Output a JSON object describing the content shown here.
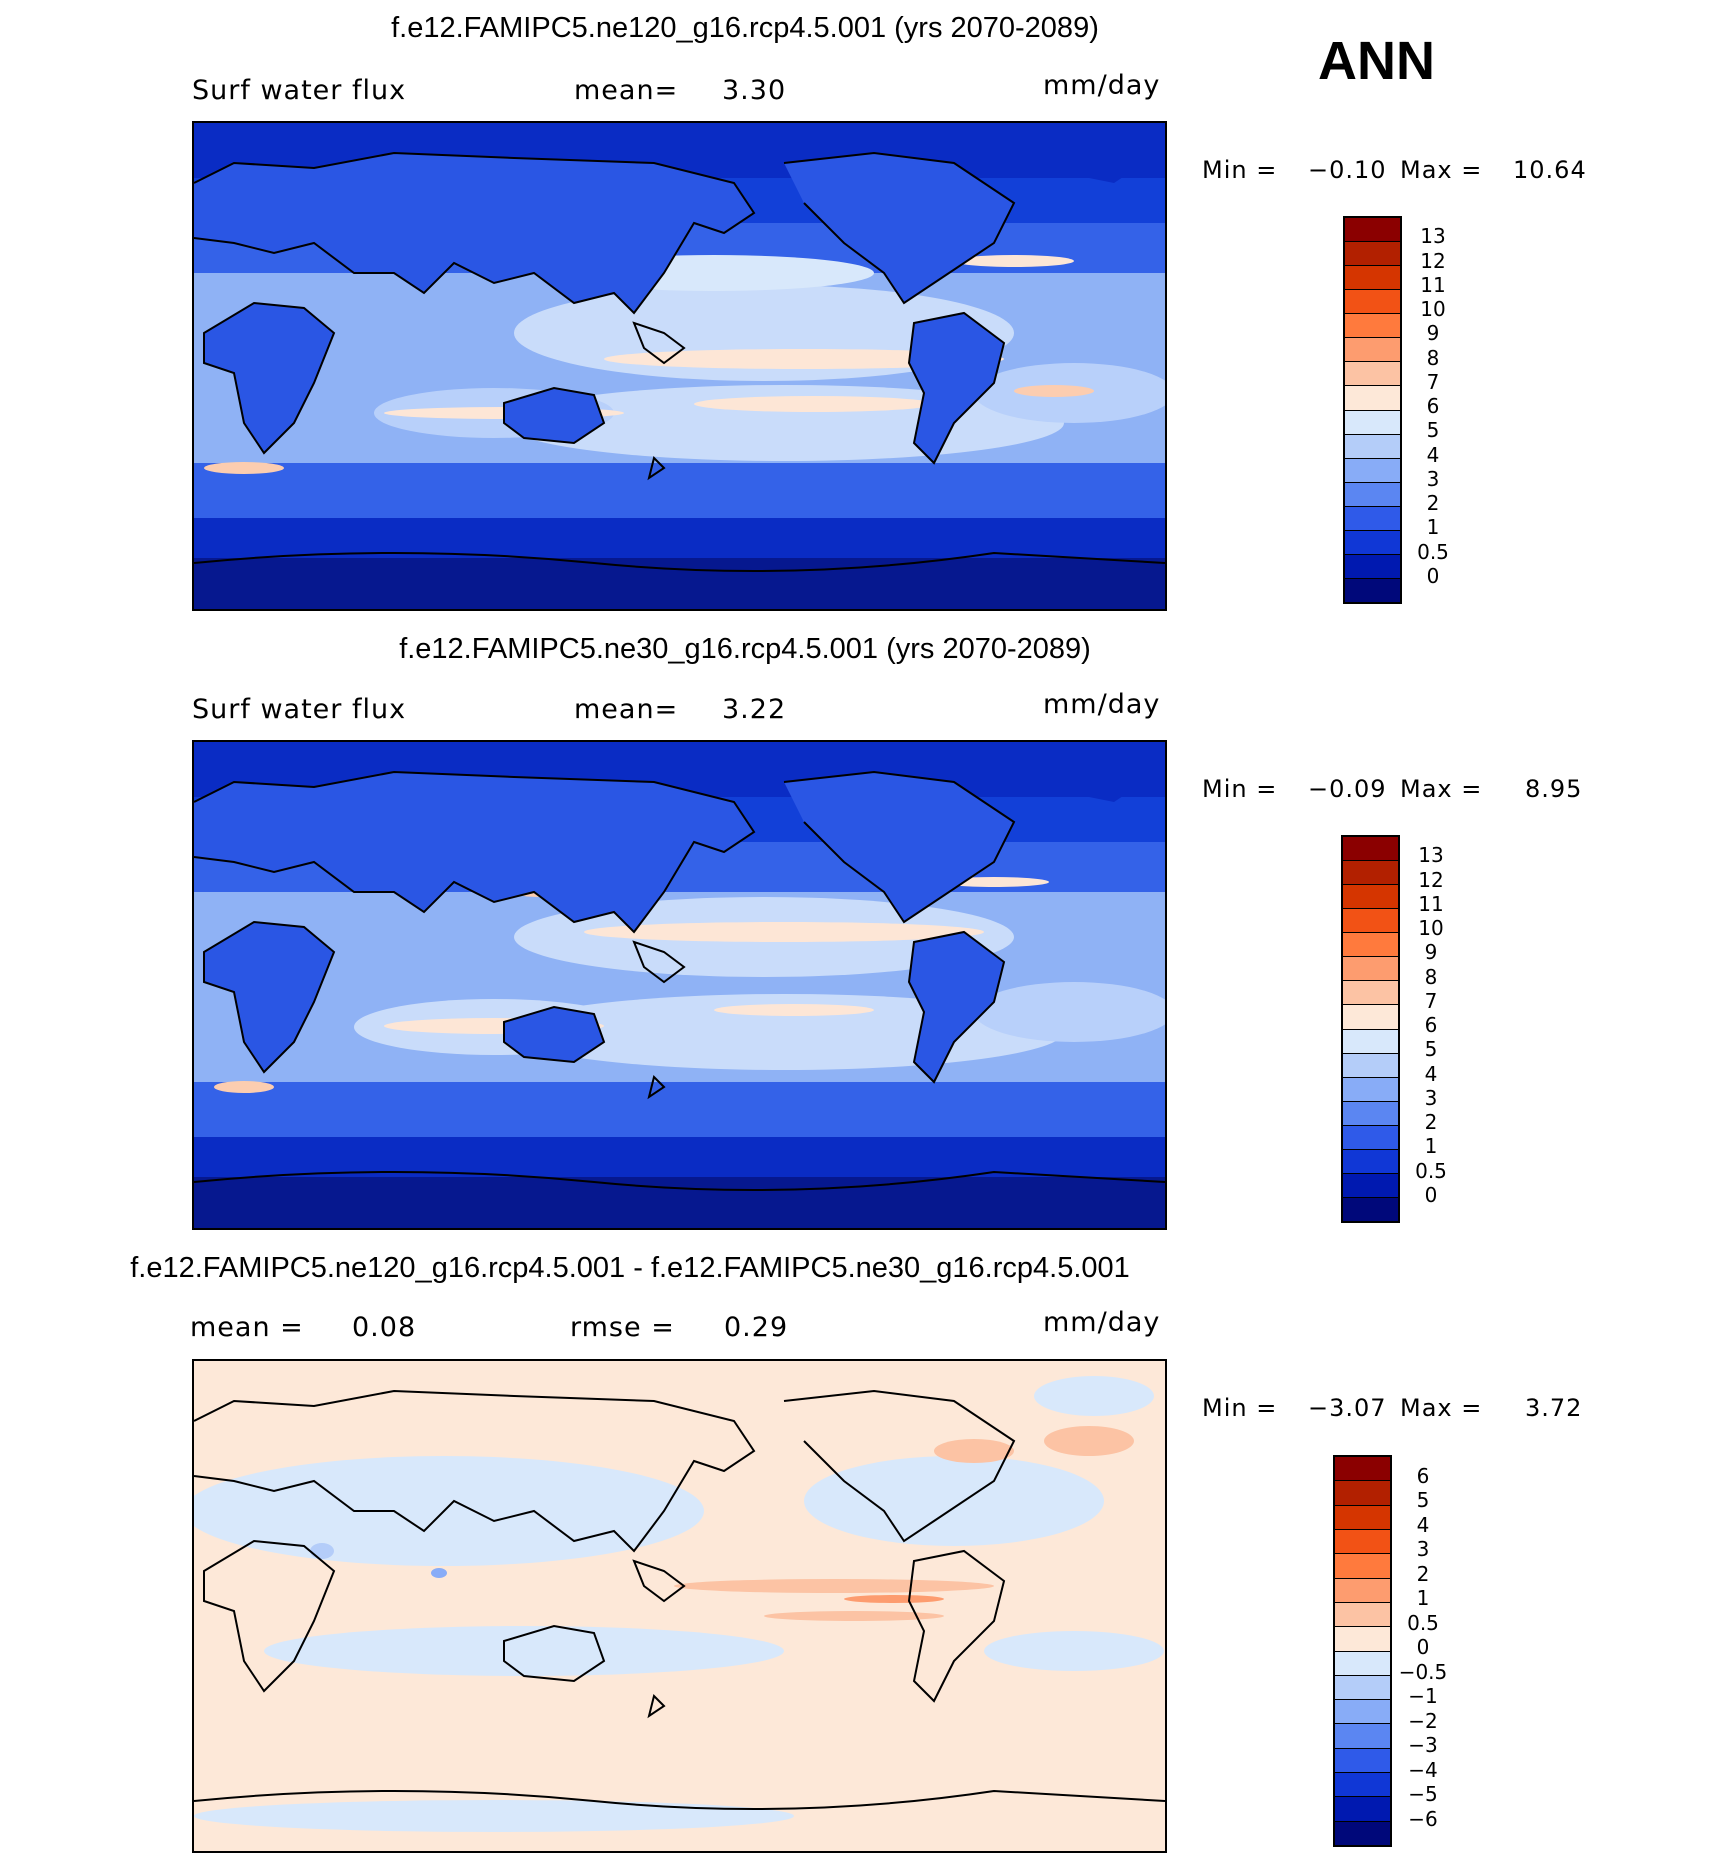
{
  "season": "ANN",
  "colormap_main": [
    "#e0e3f8"
  ],
  "panels": [
    {
      "title": "f.e12.FAMIPC5.ne120_g16.rcp4.5.001 (yrs 2070-2089)",
      "left_label": "Surf water flux",
      "center_label": "mean=",
      "center_value": "3.30",
      "units": "mm/day",
      "min_label": "Min =",
      "min_value": "−0.10",
      "max_label": "Max =",
      "max_value": "10.64",
      "colorbar_labels": [
        "13",
        "12",
        "11",
        "10",
        "9",
        "8",
        "7",
        "6",
        "5",
        "4",
        "3",
        "2",
        "1",
        "0.5",
        "0"
      ],
      "colorbar_colors": [
        "#8b0000",
        "#b22000",
        "#d53500",
        "#f25215",
        "#ff7a3d",
        "#fd9c6f",
        "#fcc3a4",
        "#fde8d8",
        "#d8e8fb",
        "#b4cdf9",
        "#88acf7",
        "#5b86f2",
        "#2f5ae9",
        "#1037d6",
        "#0019b0",
        "#00087a"
      ]
    },
    {
      "title": "f.e12.FAMIPC5.ne30_g16.rcp4.5.001 (yrs 2070-2089)",
      "left_label": "Surf water flux",
      "center_label": "mean=",
      "center_value": "3.22",
      "units": "mm/day",
      "min_label": "Min =",
      "min_value": "−0.09",
      "max_label": "Max =",
      "max_value": "8.95",
      "colorbar_labels": [
        "13",
        "12",
        "11",
        "10",
        "9",
        "8",
        "7",
        "6",
        "5",
        "4",
        "3",
        "2",
        "1",
        "0.5",
        "0"
      ],
      "colorbar_colors": [
        "#8b0000",
        "#b22000",
        "#d53500",
        "#f25215",
        "#ff7a3d",
        "#fd9c6f",
        "#fcc3a4",
        "#fde8d8",
        "#d8e8fb",
        "#b4cdf9",
        "#88acf7",
        "#5b86f2",
        "#2f5ae9",
        "#1037d6",
        "#0019b0",
        "#00087a"
      ]
    },
    {
      "title": "f.e12.FAMIPC5.ne120_g16.rcp4.5.001 - f.e12.FAMIPC5.ne30_g16.rcp4.5.001",
      "left_label": "mean =",
      "left_value": "0.08",
      "center_label": "rmse =",
      "center_value": "0.29",
      "units": "mm/day",
      "min_label": "Min =",
      "min_value": "−3.07",
      "max_label": "Max =",
      "max_value": "3.72",
      "colorbar_labels": [
        "6",
        "5",
        "4",
        "3",
        "2",
        "1",
        "0.5",
        "0",
        "−0.5",
        "−1",
        "−2",
        "−3",
        "−4",
        "−5",
        "−6"
      ],
      "colorbar_colors": [
        "#8b0000",
        "#b22000",
        "#d53500",
        "#f25215",
        "#ff7a3d",
        "#fd9c6f",
        "#fcc3a4",
        "#fde8d8",
        "#d8e8fb",
        "#b4cdf9",
        "#88acf7",
        "#5b86f2",
        "#2f5ae9",
        "#1037d6",
        "#0019b0",
        "#00087a"
      ]
    }
  ]
}
